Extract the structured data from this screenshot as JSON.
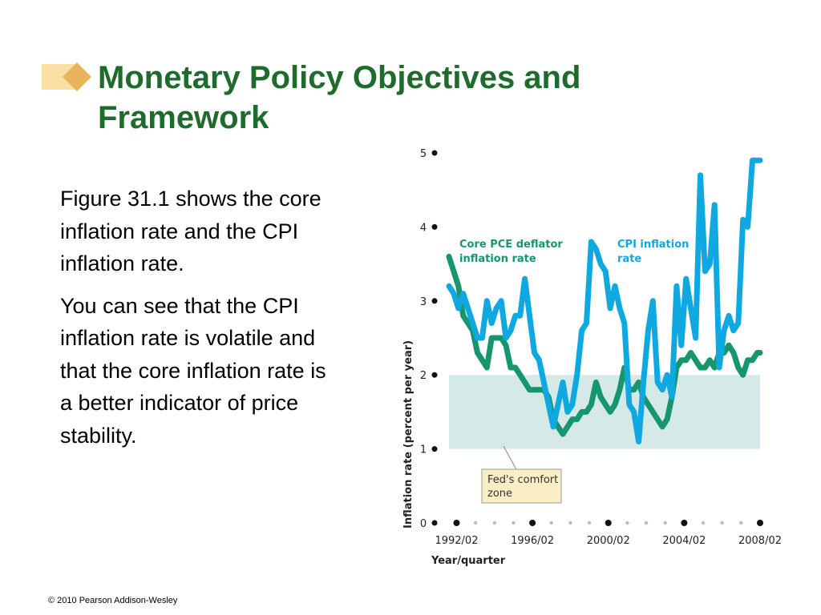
{
  "slide": {
    "title": "Monetary Policy Objectives and Framework",
    "paragraphs": [
      "Figure 31.1 shows the core inflation rate and the CPI inflation rate.",
      "You can see that the CPI inflation rate is volatile and that the core inflation rate is a better indicator of price stability."
    ],
    "footer": "© 2010 Pearson Addison-Wesley"
  },
  "colors": {
    "title": "#1e6b2c",
    "cpi_line": "#10a8e0",
    "core_line": "#17966e",
    "comfort_zone": "#d5e9e8",
    "callout_bg": "#fbeec4",
    "deco_light": "#fbe0a6",
    "deco_dark": "#e8b35c"
  },
  "chart_data": {
    "type": "line",
    "xlabel": "Year/quarter",
    "ylabel": "Inflation rate (percent per year)",
    "ylim": [
      0,
      5
    ],
    "yticks": [
      "0",
      "1",
      "2",
      "3",
      "4",
      "5"
    ],
    "xticks": [
      "1992/02",
      "1996/02",
      "2000/02",
      "2004/02",
      "2008/02"
    ],
    "x_tick_positions": [
      1992.0,
      1996.0,
      2000.0,
      2004.0,
      2008.0
    ],
    "x_range": [
      1991.6,
      2008.3
    ],
    "x_minor": [
      1993,
      1994,
      1995,
      1997,
      1998,
      1999,
      2001,
      2002,
      2003,
      2005,
      2006,
      2007
    ],
    "shaded_band": {
      "y_from": 1,
      "y_to": 2,
      "x_from": 1991.6,
      "x_to": 2008.0,
      "label": "Fed's comfort zone"
    },
    "series": [
      {
        "name": "Core PCE deflator inflation rate",
        "x": [
          1991.6,
          1991.85,
          1992.1,
          1992.35,
          1992.6,
          1992.85,
          1993.1,
          1993.35,
          1993.6,
          1993.85,
          1994.1,
          1994.35,
          1994.6,
          1994.85,
          1995.1,
          1995.35,
          1995.6,
          1995.85,
          1996.1,
          1996.35,
          1996.6,
          1996.85,
          1997.1,
          1997.35,
          1997.6,
          1997.85,
          1998.1,
          1998.35,
          1998.6,
          1998.85,
          1999.1,
          1999.35,
          1999.6,
          1999.85,
          2000.1,
          2000.35,
          2000.6,
          2000.85,
          2001.1,
          2001.35,
          2001.6,
          2001.85,
          2002.1,
          2002.35,
          2002.6,
          2002.85,
          2003.1,
          2003.35,
          2003.6,
          2003.85,
          2004.1,
          2004.35,
          2004.6,
          2004.85,
          2005.1,
          2005.35,
          2005.6,
          2005.85,
          2006.1,
          2006.35,
          2006.6,
          2006.85,
          2007.1,
          2007.35,
          2007.6,
          2007.85,
          2008.0
        ],
        "values": [
          3.6,
          3.4,
          3.2,
          2.8,
          2.7,
          2.6,
          2.3,
          2.2,
          2.1,
          2.5,
          2.5,
          2.5,
          2.4,
          2.1,
          2.1,
          2.0,
          1.9,
          1.8,
          1.8,
          1.8,
          1.8,
          1.7,
          1.4,
          1.3,
          1.2,
          1.3,
          1.4,
          1.4,
          1.5,
          1.5,
          1.6,
          1.9,
          1.7,
          1.6,
          1.5,
          1.6,
          1.8,
          2.1,
          1.8,
          1.8,
          1.9,
          1.7,
          1.6,
          1.5,
          1.4,
          1.3,
          1.4,
          1.7,
          2.1,
          2.2,
          2.2,
          2.3,
          2.2,
          2.1,
          2.1,
          2.2,
          2.1,
          2.3,
          2.3,
          2.4,
          2.3,
          2.1,
          2.0,
          2.2,
          2.2,
          2.3,
          2.3
        ]
      },
      {
        "name": "CPI inflation rate",
        "x": [
          1991.6,
          1991.85,
          1992.1,
          1992.35,
          1992.6,
          1992.85,
          1993.1,
          1993.35,
          1993.6,
          1993.85,
          1994.1,
          1994.35,
          1994.6,
          1994.85,
          1995.1,
          1995.35,
          1995.6,
          1995.85,
          1996.1,
          1996.35,
          1996.6,
          1996.85,
          1997.1,
          1997.35,
          1997.6,
          1997.85,
          1998.1,
          1998.35,
          1998.6,
          1998.85,
          1999.1,
          1999.35,
          1999.6,
          1999.85,
          2000.1,
          2000.35,
          2000.6,
          2000.85,
          2001.1,
          2001.35,
          2001.6,
          2001.85,
          2002.1,
          2002.35,
          2002.6,
          2002.85,
          2003.1,
          2003.35,
          2003.6,
          2003.85,
          2004.1,
          2004.35,
          2004.6,
          2004.85,
          2005.1,
          2005.35,
          2005.6,
          2005.85,
          2006.1,
          2006.35,
          2006.6,
          2006.85,
          2007.1,
          2007.35,
          2007.6,
          2007.85,
          2008.0
        ],
        "values": [
          3.2,
          3.1,
          2.9,
          3.1,
          2.9,
          2.7,
          2.5,
          2.5,
          3.0,
          2.7,
          2.9,
          3.0,
          2.5,
          2.6,
          2.8,
          2.8,
          3.3,
          2.8,
          2.3,
          2.2,
          1.9,
          1.6,
          1.3,
          1.6,
          1.9,
          1.5,
          1.6,
          2.0,
          2.6,
          2.7,
          3.8,
          3.7,
          3.5,
          3.4,
          2.9,
          3.2,
          2.9,
          2.7,
          1.6,
          1.5,
          1.1,
          1.9,
          2.6,
          3.0,
          1.9,
          1.8,
          2.0,
          1.7,
          3.2,
          2.4,
          3.3,
          2.9,
          2.5,
          4.7,
          3.4,
          3.5,
          4.3,
          2.1,
          2.6,
          2.8,
          2.6,
          2.7,
          4.1,
          4.0,
          4.9,
          4.9,
          4.9
        ]
      }
    ]
  }
}
